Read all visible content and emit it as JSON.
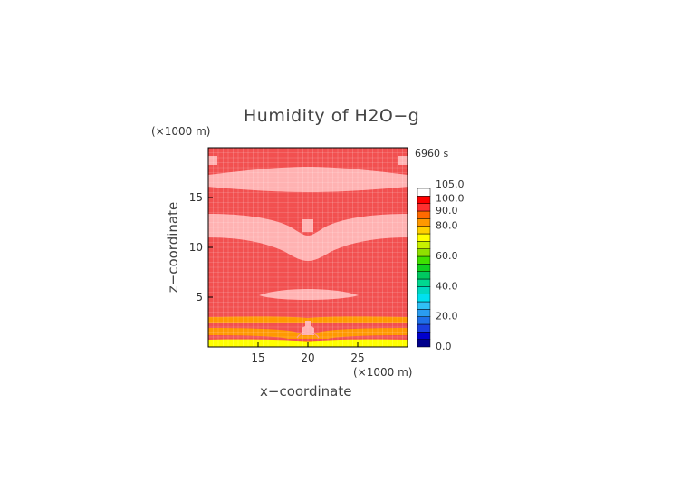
{
  "chart_data": {
    "type": "heatmap",
    "title": "Humidity of H2O−g",
    "time_label": "6960 s",
    "xlabel": "x−coordinate",
    "ylabel": "z−coordinate",
    "x_unit": "(×1000 m)",
    "y_unit": "(×1000 m)",
    "xlim": [
      10,
      30
    ],
    "ylim": [
      0,
      20
    ],
    "x_ticks": [
      "15",
      "20",
      "25"
    ],
    "y_ticks": [
      "5",
      "10",
      "15"
    ],
    "x_tick_values": [
      15,
      20,
      25
    ],
    "y_tick_values": [
      5,
      10,
      15
    ],
    "colorbar": {
      "tick_labels": [
        "105.0",
        "100.0",
        "90.0",
        "80.0",
        "60.0",
        "40.0",
        "20.0",
        "0.0"
      ],
      "levels": [
        0,
        5,
        10,
        15,
        20,
        25,
        30,
        35,
        40,
        45,
        50,
        55,
        60,
        65,
        70,
        75,
        80,
        85,
        90,
        95,
        100,
        105
      ],
      "colors": [
        "#00008b",
        "#0000cd",
        "#1a3fe0",
        "#1f6fe8",
        "#2a9cf0",
        "#30c0f5",
        "#00e0f0",
        "#00d8c0",
        "#00d890",
        "#00c860",
        "#10d020",
        "#40e000",
        "#90e000",
        "#c8f000",
        "#ffff00",
        "#ffd000",
        "#ff9800",
        "#ff6a00",
        "#ff3030",
        "#ff0000",
        "#ffffff"
      ]
    },
    "field_colors": {
      "saturated": "#f25050",
      "supersaturated": "#ffb2b2",
      "near_surface": "#ff9800",
      "surface": "#ffff00"
    }
  }
}
